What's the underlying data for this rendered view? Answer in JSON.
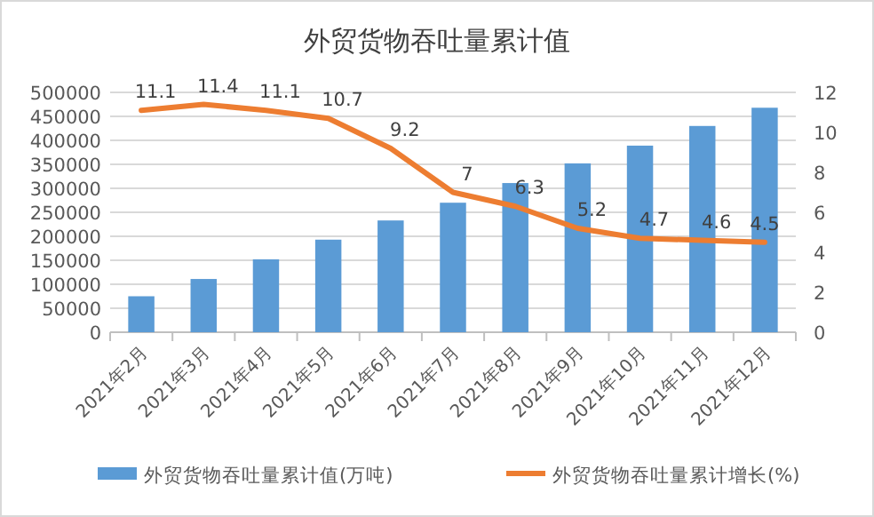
{
  "chart_data": {
    "type": "bar",
    "title": "外贸货物吞吐量累计值",
    "categories": [
      "2021年2月",
      "2021年3月",
      "2021年4月",
      "2021年5月",
      "2021年6月",
      "2021年7月",
      "2021年8月",
      "2021年9月",
      "2021年10月",
      "2021年11月",
      "2021年12月"
    ],
    "series": [
      {
        "name": "外贸货物吞吐量累计值(万吨)",
        "type": "bar",
        "color": "#5b9bd5",
        "values": [
          75000,
          111000,
          152000,
          193000,
          233000,
          270000,
          311000,
          352000,
          389000,
          430000,
          468000
        ]
      },
      {
        "name": "外贸货物吞吐量累计增长(%)",
        "type": "line",
        "axis": "y2",
        "color": "#ed7d31",
        "values": [
          11.1,
          11.4,
          11.1,
          10.7,
          9.2,
          7,
          6.3,
          5.2,
          4.7,
          4.6,
          4.5
        ],
        "value_labels": [
          "11.1",
          "11.4",
          "11.1",
          "10.7",
          "9.2",
          "7",
          "6.3",
          "5.2",
          "4.7",
          "4.6",
          "4.5"
        ]
      }
    ],
    "ylim": [
      0,
      500000
    ],
    "yticks": [
      0,
      50000,
      100000,
      150000,
      200000,
      250000,
      300000,
      350000,
      400000,
      450000,
      500000
    ],
    "y2lim": [
      0,
      12
    ],
    "y2ticks": [
      0,
      2,
      4,
      6,
      8,
      10,
      12
    ],
    "grid": "y",
    "legend": "bottom",
    "marker": "none",
    "line_style": "solid"
  }
}
